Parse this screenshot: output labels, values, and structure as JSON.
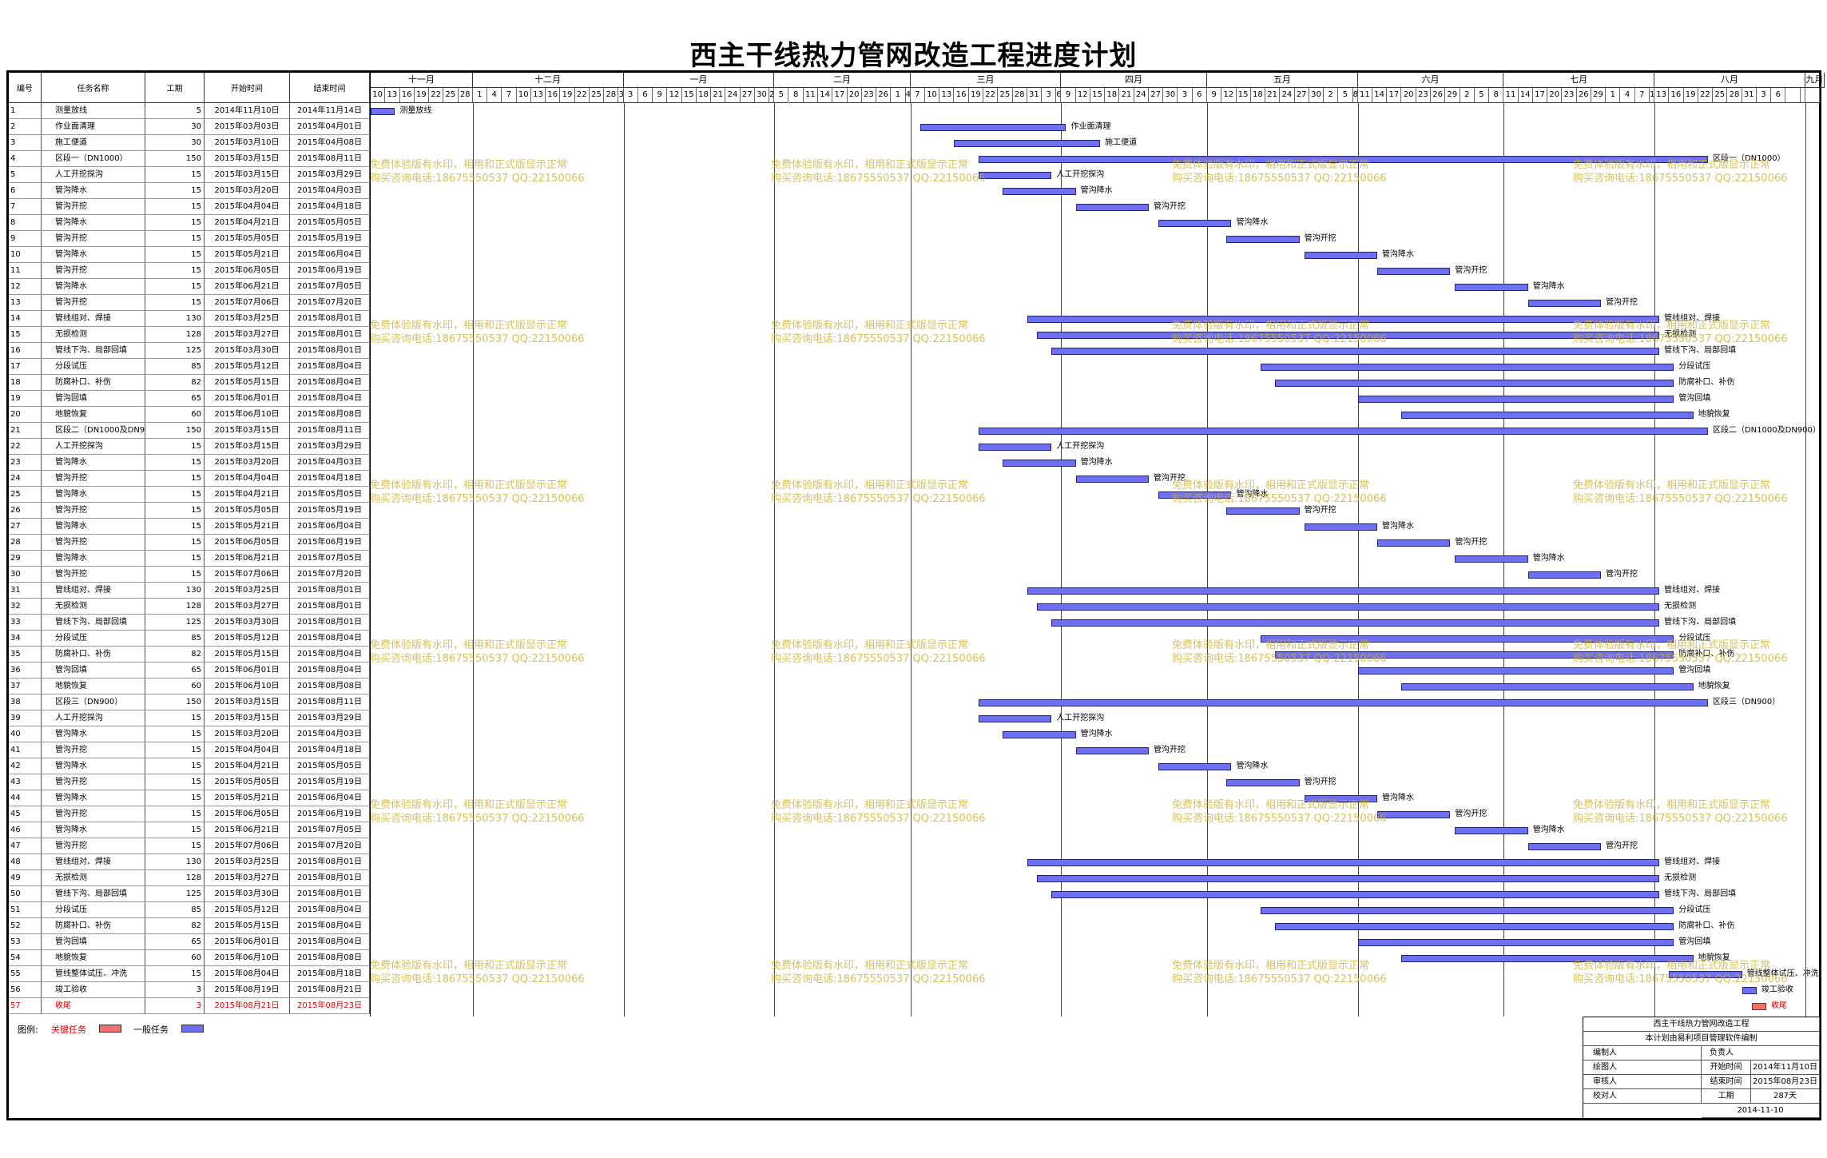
{
  "title": "西主干线热力管网改造工程进度计划",
  "headers": {
    "id": "编号",
    "name": "任务名称",
    "duration": "工期",
    "start": "开始时间",
    "end": "结束时间"
  },
  "months": [
    "十一月",
    "十二月",
    "一月",
    "二月",
    "三月",
    "四月",
    "五月",
    "六月",
    "七月",
    "八月",
    "九月"
  ],
  "days": [
    "10",
    "13",
    "16",
    "19",
    "22",
    "25",
    "28",
    "1",
    "4",
    "7",
    "10",
    "13",
    "16",
    "19",
    "22",
    "25",
    "28",
    "31",
    "3",
    "6",
    "9",
    "12",
    "15",
    "18",
    "21",
    "24",
    "27",
    "30",
    "2",
    "5",
    "8",
    "11",
    "14",
    "17",
    "20",
    "23",
    "26",
    "1",
    "4",
    "7",
    "10",
    "13",
    "16",
    "19",
    "22",
    "25",
    "28",
    "31",
    "3",
    "6",
    "9",
    "12",
    "15",
    "18",
    "21",
    "24",
    "27",
    "30",
    "3",
    "6",
    "9",
    "12",
    "15",
    "18",
    "21",
    "24",
    "27",
    "30",
    "2",
    "5",
    "8",
    "11",
    "14",
    "17",
    "20",
    "23",
    "26",
    "29",
    "2",
    "5",
    "8",
    "11",
    "14",
    "17",
    "20",
    "23",
    "26",
    "29",
    "1",
    "4",
    "7",
    "10",
    "13",
    "16",
    "19",
    "22",
    "25",
    "28",
    "31",
    "3",
    "6"
  ],
  "tasks": [
    {
      "id": "1",
      "name": "测量放线",
      "duration": "5",
      "start": "2014年11月10日",
      "end": "2014年11月14日"
    },
    {
      "id": "2",
      "name": "作业面清理",
      "duration": "30",
      "start": "2015年03月03日",
      "end": "2015年04月01日"
    },
    {
      "id": "3",
      "name": "施工便道",
      "duration": "30",
      "start": "2015年03月10日",
      "end": "2015年04月08日"
    },
    {
      "id": "4",
      "name": "区段一（DN1000）",
      "duration": "150",
      "start": "2015年03月15日",
      "end": "2015年08月11日"
    },
    {
      "id": "5",
      "name": "人工开挖探沟",
      "duration": "15",
      "start": "2015年03月15日",
      "end": "2015年03月29日"
    },
    {
      "id": "6",
      "name": "管沟降水",
      "duration": "15",
      "start": "2015年03月20日",
      "end": "2015年04月03日"
    },
    {
      "id": "7",
      "name": "管沟开挖",
      "duration": "15",
      "start": "2015年04月04日",
      "end": "2015年04月18日"
    },
    {
      "id": "8",
      "name": "管沟降水",
      "duration": "15",
      "start": "2015年04月21日",
      "end": "2015年05月05日"
    },
    {
      "id": "9",
      "name": "管沟开挖",
      "duration": "15",
      "start": "2015年05月05日",
      "end": "2015年05月19日"
    },
    {
      "id": "10",
      "name": "管沟降水",
      "duration": "15",
      "start": "2015年05月21日",
      "end": "2015年06月04日"
    },
    {
      "id": "11",
      "name": "管沟开挖",
      "duration": "15",
      "start": "2015年06月05日",
      "end": "2015年06月19日"
    },
    {
      "id": "12",
      "name": "管沟降水",
      "duration": "15",
      "start": "2015年06月21日",
      "end": "2015年07月05日"
    },
    {
      "id": "13",
      "name": "管沟开挖",
      "duration": "15",
      "start": "2015年07月06日",
      "end": "2015年07月20日"
    },
    {
      "id": "14",
      "name": "管线组对、焊接",
      "duration": "130",
      "start": "2015年03月25日",
      "end": "2015年08月01日"
    },
    {
      "id": "15",
      "name": "无损检测",
      "duration": "128",
      "start": "2015年03月27日",
      "end": "2015年08月01日"
    },
    {
      "id": "16",
      "name": "管线下沟、局部回填",
      "duration": "125",
      "start": "2015年03月30日",
      "end": "2015年08月01日"
    },
    {
      "id": "17",
      "name": "分段试压",
      "duration": "85",
      "start": "2015年05月12日",
      "end": "2015年08月04日"
    },
    {
      "id": "18",
      "name": "防腐补口、补伤",
      "duration": "82",
      "start": "2015年05月15日",
      "end": "2015年08月04日"
    },
    {
      "id": "19",
      "name": "管沟回填",
      "duration": "65",
      "start": "2015年06月01日",
      "end": "2015年08月04日"
    },
    {
      "id": "20",
      "name": "地貌恢复",
      "duration": "60",
      "start": "2015年06月10日",
      "end": "2015年08月08日"
    },
    {
      "id": "21",
      "name": "区段二（DN1000及DN900）",
      "duration": "150",
      "start": "2015年03月15日",
      "end": "2015年08月11日"
    },
    {
      "id": "22",
      "name": "人工开挖探沟",
      "duration": "15",
      "start": "2015年03月15日",
      "end": "2015年03月29日"
    },
    {
      "id": "23",
      "name": "管沟降水",
      "duration": "15",
      "start": "2015年03月20日",
      "end": "2015年04月03日"
    },
    {
      "id": "24",
      "name": "管沟开挖",
      "duration": "15",
      "start": "2015年04月04日",
      "end": "2015年04月18日"
    },
    {
      "id": "25",
      "name": "管沟降水",
      "duration": "15",
      "start": "2015年04月21日",
      "end": "2015年05月05日"
    },
    {
      "id": "26",
      "name": "管沟开挖",
      "duration": "15",
      "start": "2015年05月05日",
      "end": "2015年05月19日"
    },
    {
      "id": "27",
      "name": "管沟降水",
      "duration": "15",
      "start": "2015年05月21日",
      "end": "2015年06月04日"
    },
    {
      "id": "28",
      "name": "管沟开挖",
      "duration": "15",
      "start": "2015年06月05日",
      "end": "2015年06月19日"
    },
    {
      "id": "29",
      "name": "管沟降水",
      "duration": "15",
      "start": "2015年06月21日",
      "end": "2015年07月05日"
    },
    {
      "id": "30",
      "name": "管沟开挖",
      "duration": "15",
      "start": "2015年07月06日",
      "end": "2015年07月20日"
    },
    {
      "id": "31",
      "name": "管线组对、焊接",
      "duration": "130",
      "start": "2015年03月25日",
      "end": "2015年08月01日"
    },
    {
      "id": "32",
      "name": "无损检测",
      "duration": "128",
      "start": "2015年03月27日",
      "end": "2015年08月01日"
    },
    {
      "id": "33",
      "name": "管线下沟、局部回填",
      "duration": "125",
      "start": "2015年03月30日",
      "end": "2015年08月01日"
    },
    {
      "id": "34",
      "name": "分段试压",
      "duration": "85",
      "start": "2015年05月12日",
      "end": "2015年08月04日"
    },
    {
      "id": "35",
      "name": "防腐补口、补伤",
      "duration": "82",
      "start": "2015年05月15日",
      "end": "2015年08月04日"
    },
    {
      "id": "36",
      "name": "管沟回填",
      "duration": "65",
      "start": "2015年06月01日",
      "end": "2015年08月04日"
    },
    {
      "id": "37",
      "name": "地貌恢复",
      "duration": "60",
      "start": "2015年06月10日",
      "end": "2015年08月08日"
    },
    {
      "id": "38",
      "name": "区段三（DN900）",
      "duration": "150",
      "start": "2015年03月15日",
      "end": "2015年08月11日"
    },
    {
      "id": "39",
      "name": "人工开挖探沟",
      "duration": "15",
      "start": "2015年03月15日",
      "end": "2015年03月29日"
    },
    {
      "id": "40",
      "name": "管沟降水",
      "duration": "15",
      "start": "2015年03月20日",
      "end": "2015年04月03日"
    },
    {
      "id": "41",
      "name": "管沟开挖",
      "duration": "15",
      "start": "2015年04月04日",
      "end": "2015年04月18日"
    },
    {
      "id": "42",
      "name": "管沟降水",
      "duration": "15",
      "start": "2015年04月21日",
      "end": "2015年05月05日"
    },
    {
      "id": "43",
      "name": "管沟开挖",
      "duration": "15",
      "start": "2015年05月05日",
      "end": "2015年05月19日"
    },
    {
      "id": "44",
      "name": "管沟降水",
      "duration": "15",
      "start": "2015年05月21日",
      "end": "2015年06月04日"
    },
    {
      "id": "45",
      "name": "管沟开挖",
      "duration": "15",
      "start": "2015年06月05日",
      "end": "2015年06月19日"
    },
    {
      "id": "46",
      "name": "管沟降水",
      "duration": "15",
      "start": "2015年06月21日",
      "end": "2015年07月05日"
    },
    {
      "id": "47",
      "name": "管沟开挖",
      "duration": "15",
      "start": "2015年07月06日",
      "end": "2015年07月20日"
    },
    {
      "id": "48",
      "name": "管线组对、焊接",
      "duration": "130",
      "start": "2015年03月25日",
      "end": "2015年08月01日"
    },
    {
      "id": "49",
      "name": "无损检测",
      "duration": "128",
      "start": "2015年03月27日",
      "end": "2015年08月01日"
    },
    {
      "id": "50",
      "name": "管线下沟、局部回填",
      "duration": "125",
      "start": "2015年03月30日",
      "end": "2015年08月01日"
    },
    {
      "id": "51",
      "name": "分段试压",
      "duration": "85",
      "start": "2015年05月12日",
      "end": "2015年08月04日"
    },
    {
      "id": "52",
      "name": "防腐补口、补伤",
      "duration": "82",
      "start": "2015年05月15日",
      "end": "2015年08月04日"
    },
    {
      "id": "53",
      "name": "管沟回填",
      "duration": "65",
      "start": "2015年06月01日",
      "end": "2015年08月04日"
    },
    {
      "id": "54",
      "name": "地貌恢复",
      "duration": "60",
      "start": "2015年06月10日",
      "end": "2015年08月08日"
    },
    {
      "id": "55",
      "name": "管线整体试压、冲洗",
      "duration": "15",
      "start": "2015年08月04日",
      "end": "2015年08月18日"
    },
    {
      "id": "56",
      "name": "竣工验收",
      "duration": "3",
      "start": "2015年08月19日",
      "end": "2015年08月21日"
    },
    {
      "id": "57",
      "name": "收尾",
      "duration": "3",
      "start": "2015年08月21日",
      "end": "2015年08月23日",
      "critical": true
    }
  ],
  "watermark": {
    "line1": "免费体验版有水印，相用和正式版显示正常",
    "line2": "购买咨询电话:18675550537 QQ:22150066"
  },
  "legend": {
    "label": "图例:",
    "critical": "关键任务",
    "normal": "一般任务"
  },
  "colors": {
    "normal_bar": "#6f6ff2",
    "critical_bar": "#f07070",
    "critical_text": "#e00000",
    "watermark": "#cdaf28"
  },
  "info": {
    "project": "西主干线热力管网改造工程",
    "software": "本计划由易利项目管理软件编制",
    "editor_label": "编制人",
    "owner_label": "负责人",
    "drawer_label": "绘图人",
    "reviewer_label": "审核人",
    "checker_label": "校对人",
    "start_label": "开始时间",
    "start_value": "2014年11月10日",
    "end_label": "结束时间",
    "end_value": "2015年08月23日",
    "duration_label": "工期",
    "duration_value": "287天",
    "date": "2014-11-10"
  }
}
